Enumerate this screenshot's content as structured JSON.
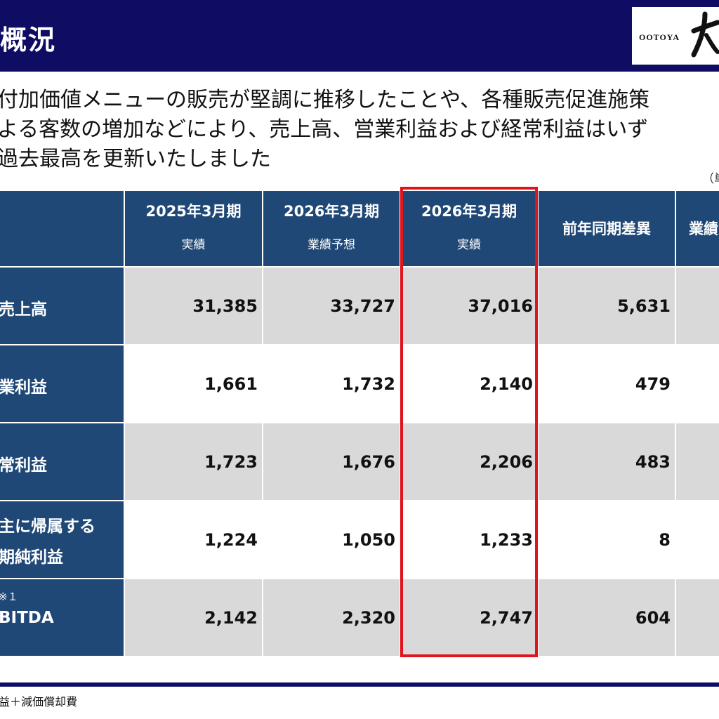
{
  "header": {
    "title": "概況",
    "logo_text": "OOTOYA"
  },
  "lead": {
    "lines": [
      "付加価値メニューの販売が堅調に推移したことや、各種販売促進施策",
      "よる客数の増加などにより、売上高、営業利益および経常利益はいず",
      "過去最高を更新いたしました"
    ]
  },
  "unit_label": "（単",
  "table": {
    "columns": [
      {
        "title": "2025年3月期",
        "sub": "実績"
      },
      {
        "title": "2026年3月期",
        "sub": "業績予想"
      },
      {
        "title": "2026年3月期",
        "sub": "実績"
      },
      {
        "title": "前年同期差異",
        "sub": ""
      },
      {
        "title": "業績",
        "sub": ""
      }
    ],
    "rows": [
      {
        "label": "売上高",
        "values": [
          "31,385",
          "33,727",
          "37,016",
          "5,631"
        ]
      },
      {
        "label": "業利益",
        "values": [
          "1,661",
          "1,732",
          "2,140",
          "479"
        ]
      },
      {
        "label": "常利益",
        "values": [
          "1,723",
          "1,676",
          "2,206",
          "483"
        ]
      },
      {
        "label_lines": [
          "主に帰属する",
          "期純利益"
        ],
        "values": [
          "1,224",
          "1,050",
          "1,233",
          "8"
        ]
      },
      {
        "label": "BITDA",
        "note": "※１",
        "values": [
          "2,142",
          "2,320",
          "2,747",
          "604"
        ]
      }
    ]
  },
  "footnote": "益＋減価償却費",
  "colors": {
    "header_bg": "#0e0d63",
    "table_head_bg": "#1f4877",
    "row_gray": "#d9d9d9",
    "highlight": "#e0141b"
  }
}
